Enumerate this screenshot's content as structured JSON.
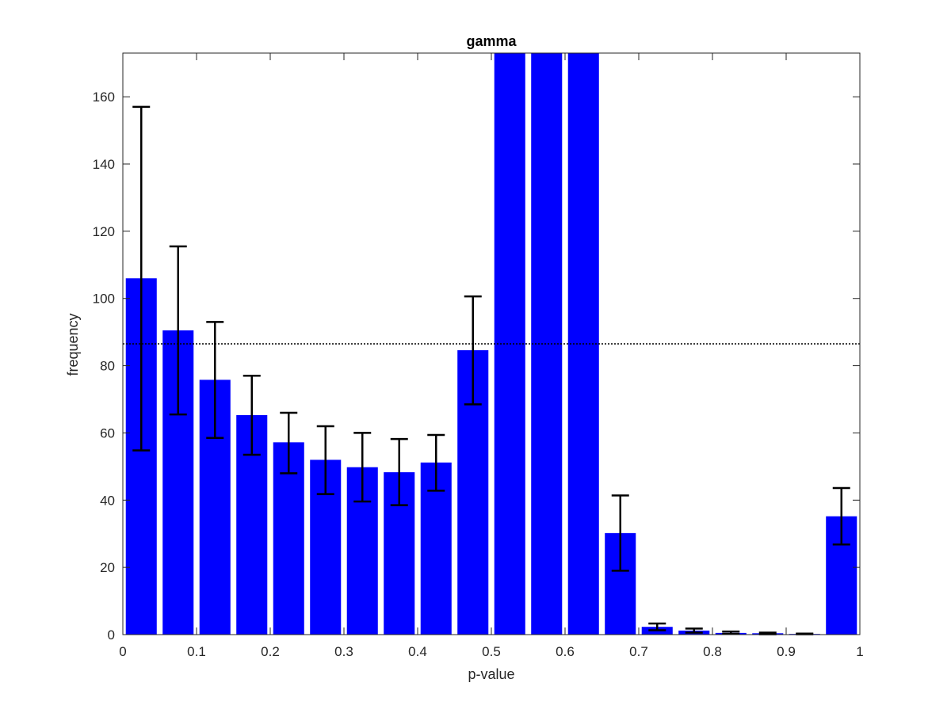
{
  "chart_data": {
    "type": "bar",
    "title": "gamma",
    "xlabel": "p-value",
    "ylabel": "frequency",
    "xlim": [
      0,
      1
    ],
    "ylim": [
      0,
      173
    ],
    "bin_width": 0.05,
    "x": [
      0.025,
      0.075,
      0.125,
      0.175,
      0.225,
      0.275,
      0.325,
      0.375,
      0.425,
      0.475,
      0.525,
      0.575,
      0.625,
      0.675,
      0.725,
      0.775,
      0.825,
      0.875,
      0.925,
      0.975
    ],
    "values": [
      106,
      90.5,
      75.8,
      65.3,
      57.2,
      52,
      49.8,
      48.3,
      51.2,
      84.6,
      173,
      173,
      173,
      30.2,
      2.3,
      1.2,
      0.5,
      0.4,
      0.2,
      35.2
    ],
    "error_low": [
      54.8,
      65.5,
      58.5,
      53.5,
      48,
      41.8,
      39.6,
      38.5,
      42.8,
      68.5,
      null,
      null,
      null,
      19,
      1.3,
      0.6,
      0.2,
      0.1,
      0.1,
      26.8
    ],
    "error_high": [
      157,
      115.5,
      93,
      77,
      66,
      62,
      60,
      58.2,
      59.4,
      100.6,
      null,
      null,
      null,
      41.4,
      3.3,
      1.8,
      0.9,
      0.6,
      0.3,
      43.6
    ],
    "reference_line": 86.5,
    "x_ticks": [
      "0",
      "0.1",
      "0.2",
      "0.3",
      "0.4",
      "0.5",
      "0.6",
      "0.7",
      "0.8",
      "0.9",
      "1"
    ],
    "y_ticks": [
      "0",
      "20",
      "40",
      "60",
      "80",
      "100",
      "120",
      "140",
      "160"
    ],
    "bar_color": "#0000ff",
    "error_bar_color": "#000000",
    "grid": false
  }
}
